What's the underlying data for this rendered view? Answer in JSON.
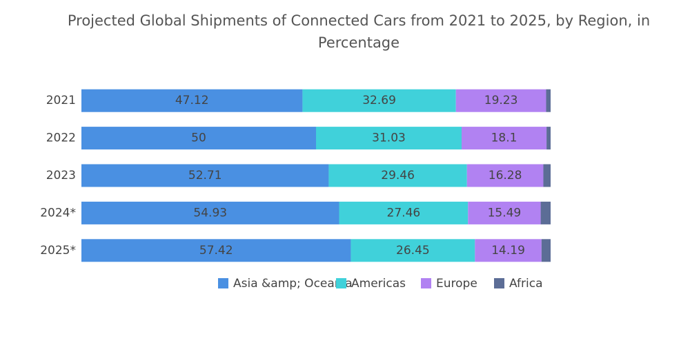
{
  "chart_data": {
    "type": "stacked-bar-horizontal",
    "title": "Projected Global Shipments of Connected Cars from 2021 to 2025, by Region, in Percentage",
    "categories": [
      "2021",
      "2022",
      "2023",
      "2024*",
      "2025*"
    ],
    "series": [
      {
        "name": "Asia &amp; Oceania",
        "color": "#4a90e2",
        "values": [
          47.12,
          50,
          52.71,
          54.93,
          57.42
        ],
        "labels": true
      },
      {
        "name": "Americas",
        "color": "#40d1da",
        "values": [
          32.69,
          31.03,
          29.46,
          27.46,
          26.45
        ],
        "labels": true
      },
      {
        "name": "Europe",
        "color": "#b182f2",
        "values": [
          19.23,
          18.1,
          16.28,
          15.49,
          14.19
        ],
        "labels": true
      },
      {
        "name": "Africa",
        "color": "#5c6d96",
        "values": [
          0.96,
          0.87,
          1.55,
          2.12,
          1.94
        ],
        "labels": false
      }
    ],
    "xlim": [
      0,
      100
    ],
    "legend": "bottom"
  }
}
